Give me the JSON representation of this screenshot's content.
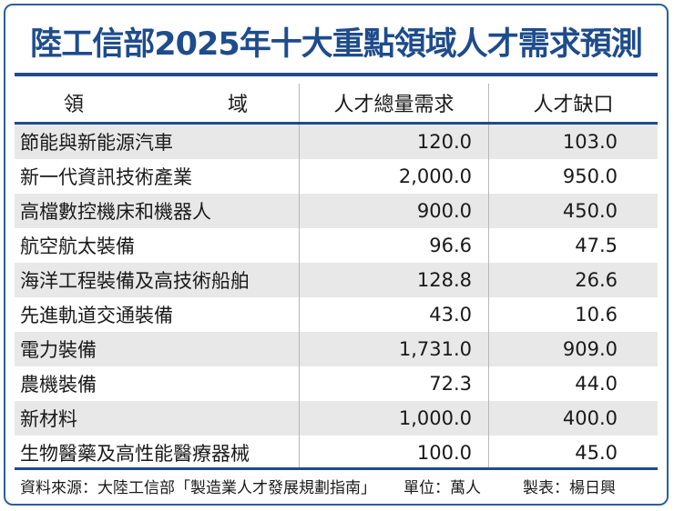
{
  "title": "陸工信部2025年十大重點領域人才需求預測",
  "headers": [
    "領　　域",
    "人才總量需求",
    "人才缺口"
  ],
  "rows": [
    {
      "field": "節能與新能源汽車",
      "demand": "120.0",
      "gap": "103.0"
    },
    {
      "field": "新一代資訊技術產業",
      "demand": "2,000.0",
      "gap": "950.0"
    },
    {
      "field": "高檔數控機床和機器人",
      "demand": "900.0",
      "gap": "450.0"
    },
    {
      "field": "航空航太裝備",
      "demand": "96.6",
      "gap": "47.5"
    },
    {
      "field": "海洋工程裝備及高技術船舶",
      "demand": "128.8",
      "gap": "26.6"
    },
    {
      "field": "先進軌道交通裝備",
      "demand": "43.0",
      "gap": "10.6"
    },
    {
      "field": "電力裝備",
      "demand": "1,731.0",
      "gap": "909.0"
    },
    {
      "field": "農機裝備",
      "demand": "72.3",
      "gap": "44.0"
    },
    {
      "field": "新材料",
      "demand": "1,000.0",
      "gap": "400.0"
    },
    {
      "field": "生物醫藥及高性能醫療器械",
      "demand": "100.0",
      "gap": "45.0"
    }
  ],
  "footer": {
    "source": "資料來源：大陸工信部「製造業人才發展規劃指南」",
    "unit": "單位：萬人",
    "maker": "製表：楊日興"
  },
  "colors": {
    "accent": "#1e4c8c",
    "row_shade": "#e8e8e8"
  },
  "chart_data": {
    "type": "table",
    "title": "陸工信部2025年十大重點領域人才需求預測",
    "columns": [
      "領域",
      "人才總量需求",
      "人才缺口"
    ],
    "categories": [
      "節能與新能源汽車",
      "新一代資訊技術產業",
      "高檔數控機床和機器人",
      "航空航太裝備",
      "海洋工程裝備及高技術船舶",
      "先進軌道交通裝備",
      "電力裝備",
      "農機裝備",
      "新材料",
      "生物醫藥及高性能醫療器械"
    ],
    "series": [
      {
        "name": "人才總量需求",
        "values": [
          120.0,
          2000.0,
          900.0,
          96.6,
          128.8,
          43.0,
          1731.0,
          72.3,
          1000.0,
          100.0
        ]
      },
      {
        "name": "人才缺口",
        "values": [
          103.0,
          950.0,
          450.0,
          47.5,
          26.6,
          10.6,
          909.0,
          44.0,
          400.0,
          45.0
        ]
      }
    ],
    "unit": "萬人"
  }
}
